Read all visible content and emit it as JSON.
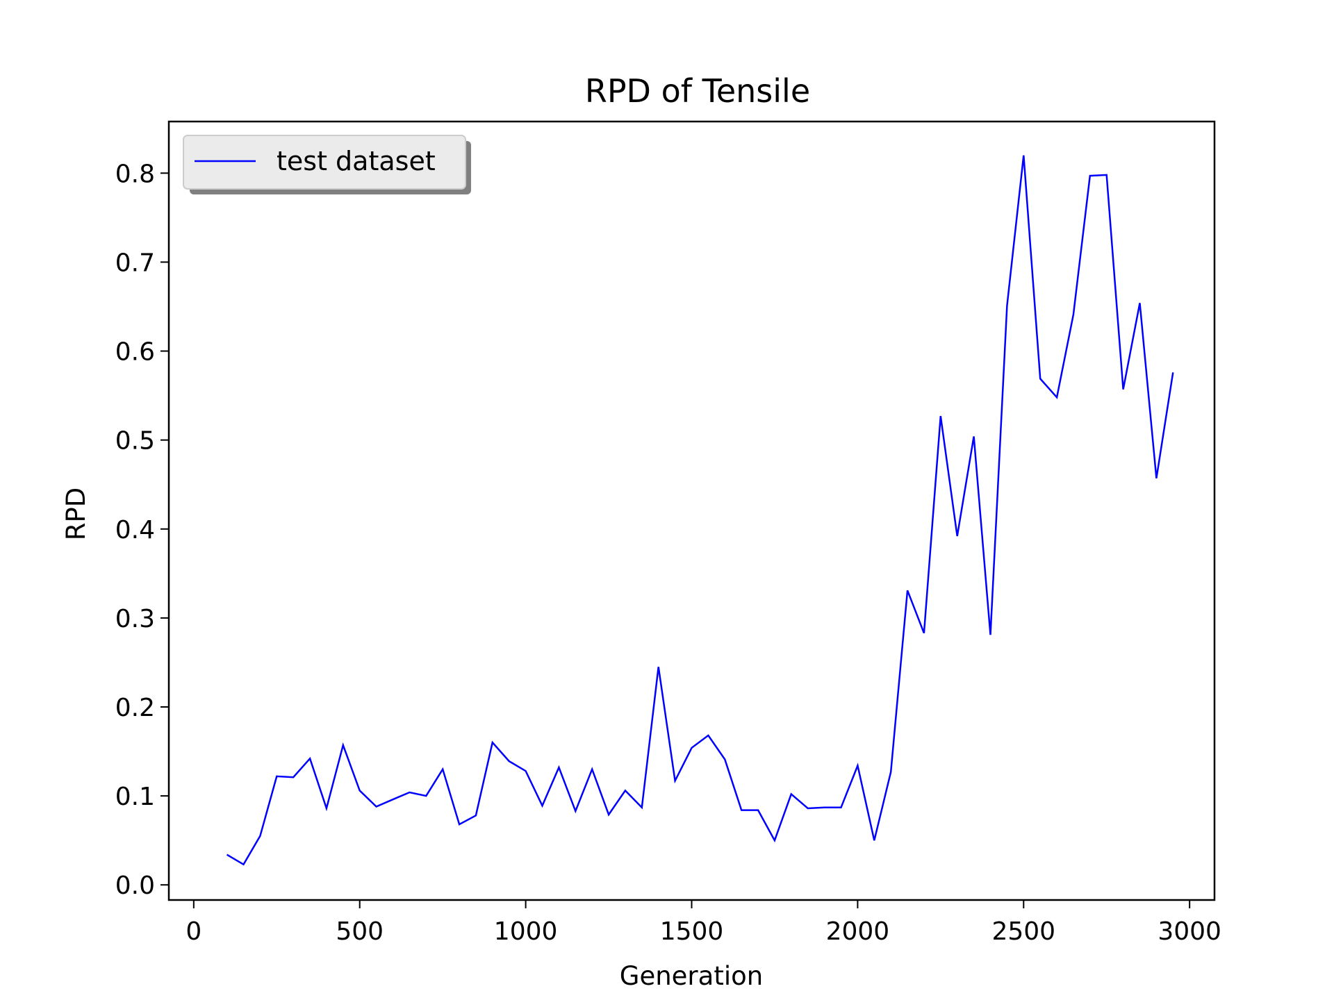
{
  "chart_data": {
    "type": "line",
    "title": "RPD of Tensile",
    "xlabel": "Generation",
    "ylabel": "RPD",
    "xlim": [
      -75,
      3075
    ],
    "ylim": [
      -0.017,
      0.858
    ],
    "xticks": [
      0,
      500,
      1000,
      1500,
      2000,
      2500,
      3000
    ],
    "xtick_labels": [
      "0",
      "500",
      "1000",
      "1500",
      "2000",
      "2500",
      "3000"
    ],
    "yticks": [
      0.0,
      0.1,
      0.2,
      0.3,
      0.4,
      0.5,
      0.6,
      0.7,
      0.8
    ],
    "ytick_labels": [
      "0.0",
      "0.1",
      "0.2",
      "0.3",
      "0.4",
      "0.5",
      "0.6",
      "0.7",
      "0.8"
    ],
    "grid": false,
    "legend_position": "upper-left",
    "series": [
      {
        "name": "test dataset",
        "color": "#0000ff",
        "x": [
          100,
          150,
          200,
          250,
          300,
          350,
          400,
          450,
          500,
          550,
          600,
          650,
          700,
          750,
          800,
          850,
          900,
          950,
          1000,
          1050,
          1100,
          1150,
          1200,
          1250,
          1300,
          1350,
          1400,
          1450,
          1500,
          1550,
          1600,
          1650,
          1700,
          1750,
          1800,
          1850,
          1900,
          1950,
          2000,
          2050,
          2100,
          2150,
          2200,
          2250,
          2300,
          2350,
          2400,
          2450,
          2500,
          2550,
          2600,
          2650,
          2700,
          2750,
          2800,
          2850,
          2900,
          2950
        ],
        "y": [
          0.034,
          0.023,
          0.055,
          0.122,
          0.121,
          0.142,
          0.086,
          0.157,
          0.106,
          0.088,
          0.096,
          0.104,
          0.1,
          0.13,
          0.068,
          0.078,
          0.16,
          0.139,
          0.128,
          0.089,
          0.132,
          0.083,
          0.13,
          0.079,
          0.106,
          0.087,
          0.245,
          0.117,
          0.154,
          0.168,
          0.141,
          0.084,
          0.084,
          0.05,
          0.102,
          0.086,
          0.087,
          0.087,
          0.134,
          0.05,
          0.127,
          0.331,
          0.283,
          0.527,
          0.392,
          0.504,
          0.281,
          0.651,
          0.82,
          0.569,
          0.548,
          0.641,
          0.797,
          0.798,
          0.557,
          0.654,
          0.457,
          0.576
        ]
      }
    ]
  }
}
